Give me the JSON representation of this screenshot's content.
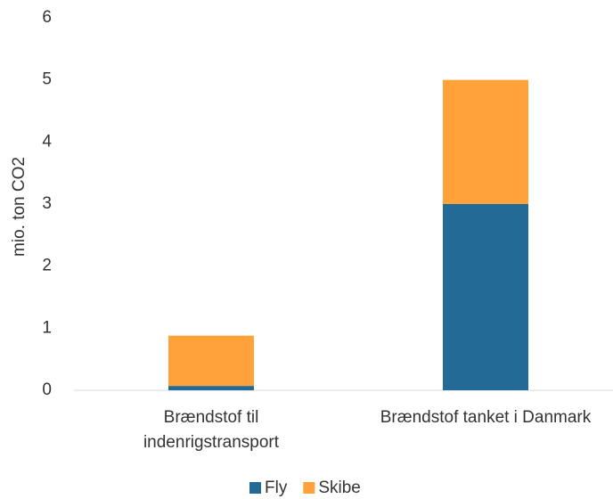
{
  "chart_data": {
    "type": "bar",
    "stacked": true,
    "y_label": "mio. ton CO2",
    "categories": [
      "Brændstof til indenrigstransport",
      "Brændstof tanket i Danmark"
    ],
    "series": [
      {
        "name": "Fly",
        "color": "#236b96",
        "values": [
          0.07,
          3.0
        ]
      },
      {
        "name": "Skibe",
        "color": "#ffa23a",
        "values": [
          0.81,
          2.0
        ]
      }
    ],
    "ylim": [
      0,
      6
    ],
    "yticks": [
      0,
      1,
      2,
      3,
      4,
      5,
      6
    ],
    "grid": false,
    "legend": "bottom"
  }
}
